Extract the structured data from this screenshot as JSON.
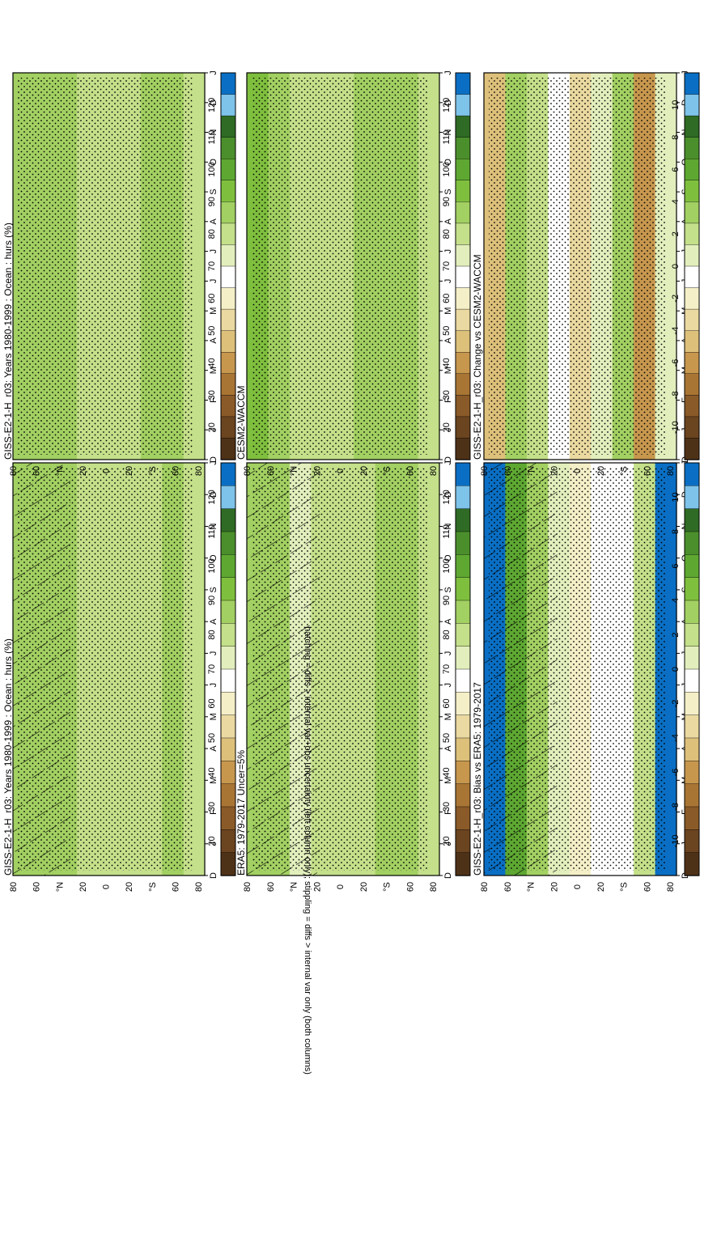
{
  "figure": {
    "footnote": "hatching = diffs > internal var+obs uncertainty (left column only); stippling = diffs > internal var only (both columns)"
  },
  "scales": {
    "abs": {
      "ticks": [
        "120",
        "110",
        "100",
        "90",
        "80",
        "70",
        "60",
        "50",
        "40",
        "30",
        "20"
      ],
      "colors": [
        "#0a6fc4",
        "#7ec3ea",
        "#2f6b24",
        "#4b8f2c",
        "#5ea832",
        "#7fbf3e",
        "#a2d062",
        "#c4e08a",
        "#e2efbd",
        "#ffffff",
        "#f4efc7",
        "#ead9a0",
        "#ddc07a",
        "#c7974e",
        "#a97534",
        "#8a5a28",
        "#6b4420",
        "#4e3217"
      ]
    },
    "diff": {
      "ticks": [
        "10",
        "8",
        "6",
        "4",
        "2",
        "0",
        "-2",
        "-4",
        "-6",
        "-8",
        "-10"
      ],
      "colors": [
        "#0a6fc4",
        "#7ec3ea",
        "#2f6b24",
        "#4b8f2c",
        "#5ea832",
        "#7fbf3e",
        "#a2d062",
        "#c4e08a",
        "#e2efbd",
        "#ffffff",
        "#f4efc7",
        "#ead9a0",
        "#ddc07a",
        "#c7974e",
        "#a97534",
        "#8a5a28",
        "#6b4420",
        "#4e3217"
      ]
    }
  },
  "axes": {
    "lat_ticks": [
      "80",
      "60",
      "°N",
      "20",
      "0",
      "20",
      "°S",
      "60",
      "80"
    ],
    "month_ticks": [
      "D",
      "J",
      "F",
      "M",
      "A",
      "M",
      "J",
      "J",
      "A",
      "S",
      "O",
      "N",
      "D",
      "J"
    ]
  },
  "chart_data": [
    {
      "type": "heatmap",
      "title": "GISS-E2-1-H_r03: Years 1980-1999 : Ocean : hurs (%)",
      "scale": "abs",
      "x_label": "month",
      "y_label": "latitude",
      "months": [
        "D",
        "J",
        "F",
        "M",
        "A",
        "M",
        "J",
        "J",
        "A",
        "S",
        "O",
        "N",
        "D",
        "J"
      ],
      "value_by_latitude": {
        "80": 86,
        "60": 84,
        "40": 86,
        "20": 80,
        "0": 82,
        "-20": 80,
        "-40": 82,
        "-60": 84,
        "-80": 82
      },
      "hatching": "north of 20°N, shown",
      "stippling": "most of the domain"
    },
    {
      "type": "heatmap",
      "title": "ERA5: 1979-2017 Uncer=5%",
      "scale": "abs",
      "value_by_latitude": {
        "80": 88,
        "60": 86,
        "40": 76,
        "20": 80,
        "0": 82,
        "-20": 82,
        "-40": 84,
        "-60": 84,
        "-80": 80
      },
      "hatching": "shown",
      "stippling": "shown"
    },
    {
      "type": "heatmap",
      "title": "GISS-E2-1-H_r03: Bias vs ERA5: 1979-2017",
      "scale": "diff",
      "value_by_latitude": {
        "80": 12,
        "60": 6,
        "40": 4,
        "20": 1,
        "0": -2,
        "-20": -1,
        "-40": -1,
        "-60": 2,
        "-80": 12
      },
      "hatching": "shown",
      "stippling": "shown"
    },
    {
      "type": "heatmap",
      "title": "GISS-E2-1-H_r03: Years 1980-1999 : Ocean : hurs (%)",
      "scale": "abs",
      "value_by_latitude": {
        "80": 86,
        "60": 84,
        "40": 84,
        "20": 80,
        "0": 82,
        "-20": 82,
        "-40": 84,
        "-60": 84,
        "-80": 82
      },
      "hatching": "not shown",
      "stippling": "shown"
    },
    {
      "type": "heatmap",
      "title": "CESM2-WACCM",
      "scale": "abs",
      "value_by_latitude": {
        "80": 90,
        "60": 86,
        "40": 78,
        "20": 82,
        "0": 82,
        "-20": 84,
        "-40": 84,
        "-60": 88,
        "-80": 82
      },
      "hatching": "not shown",
      "stippling": "shown"
    },
    {
      "type": "heatmap",
      "title": "GISS-E2-1-H_r03: Change vs CESM2-WACCM",
      "scale": "diff",
      "value_by_latitude": {
        "80": -4,
        "60": 4,
        "40": 2,
        "20": -1,
        "0": -3,
        "-20": 1,
        "-40": 3,
        "-60": -6,
        "-80": 1
      },
      "hatching": "not shown",
      "stippling": "shown"
    }
  ]
}
